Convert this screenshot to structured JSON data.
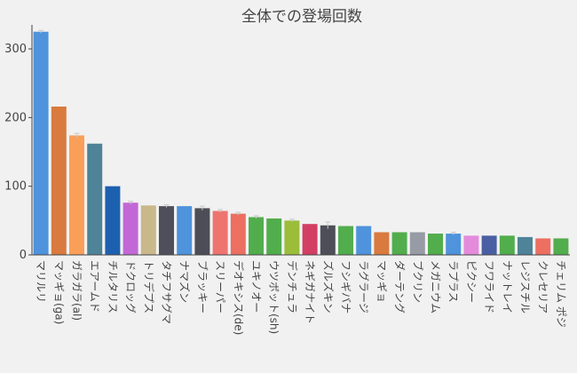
{
  "chart_data": {
    "type": "bar",
    "title": "全体での登場回数",
    "xlabel": "",
    "ylabel": "",
    "ylim": [
      0,
      335
    ],
    "yticks": [
      0,
      100,
      200,
      300
    ],
    "grid": false,
    "legend": "none",
    "categories": [
      "マリルリ",
      "マッギョ(ga)",
      "ガラガラ(al)",
      "エアームド",
      "チルタリス",
      "ドクロッグ",
      "トリデプス",
      "タチフサグマ",
      "ナマズン",
      "ブラッキー",
      "スリーパー",
      "デオキシス(de)",
      "ユキノオー",
      "ウツボット(sh)",
      "デンチュラ",
      "ネギガナイト",
      "ズルズキン",
      "フシギバナ",
      "ラグラージ",
      "マッギョ",
      "ダーテング",
      "ブクリン",
      "メガニウム",
      "ラプラス",
      "ピクシー",
      "フワライド",
      "ナットレイ",
      "レジスチル",
      "クレセリア",
      "チェリム ポジ"
    ],
    "values": [
      325,
      216,
      174,
      162,
      100,
      76,
      72,
      71,
      71,
      68,
      64,
      60,
      55,
      53,
      50,
      45,
      43,
      42,
      42,
      33,
      33,
      33,
      31,
      31,
      28,
      28,
      28,
      26,
      24,
      24
    ],
    "errors": [
      2,
      0,
      3,
      0,
      0,
      2,
      0,
      2,
      0,
      3,
      2,
      2,
      2,
      0,
      2,
      0,
      5,
      0,
      0,
      0,
      0,
      0,
      0,
      2,
      0,
      0,
      0,
      0,
      0,
      0
    ],
    "colors": [
      "#4e93dc",
      "#d97a3e",
      "#f99f59",
      "#4e8398",
      "#1d60b0",
      "#c267d6",
      "#c8b88a",
      "#4f4f5c",
      "#4e93dc",
      "#4d4d57",
      "#ee7470",
      "#ec6f62",
      "#52ad4d",
      "#52ad4d",
      "#9bbd3a",
      "#d23f62",
      "#4e4e58",
      "#52ad4d",
      "#4e93dc",
      "#d97a3e",
      "#52ad4d",
      "#969ba5",
      "#52ad4d",
      "#4e93dc",
      "#e48bdc",
      "#4a5fa3",
      "#52ad4d",
      "#4e8398",
      "#ec6f62",
      "#52ad4d"
    ]
  }
}
